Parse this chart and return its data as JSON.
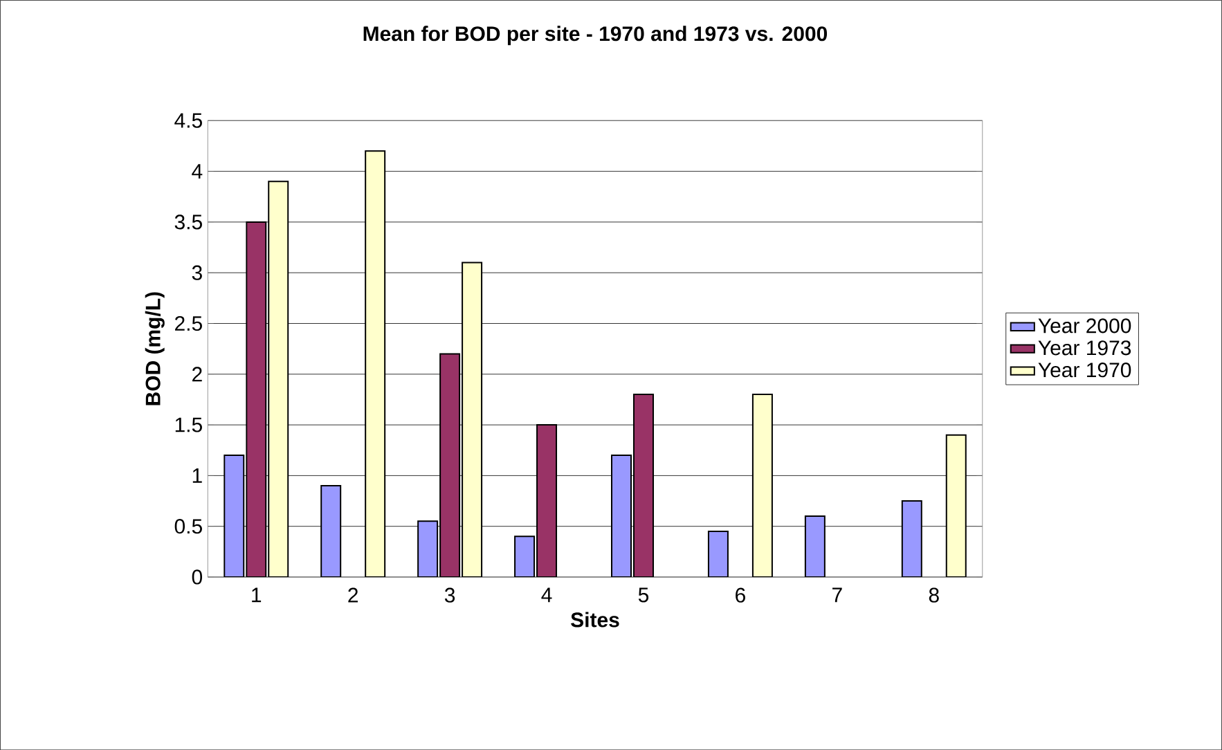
{
  "chart_data": {
    "type": "bar",
    "title": "Mean for BOD per site - 1970 and 1973 vs. 2000",
    "xlabel": "Sites",
    "ylabel": "BOD (mg/L)",
    "categories": [
      "1",
      "2",
      "3",
      "4",
      "5",
      "6",
      "7",
      "8"
    ],
    "series": [
      {
        "name": "Year 2000",
        "color": "#9999ff",
        "values": [
          1.2,
          0.9,
          0.55,
          0.4,
          1.2,
          0.45,
          0.6,
          0.75
        ]
      },
      {
        "name": "Year 1973",
        "color": "#993366",
        "values": [
          3.5,
          null,
          2.2,
          1.5,
          1.8,
          null,
          null,
          null
        ]
      },
      {
        "name": "Year 1970",
        "color": "#ffffcc",
        "values": [
          3.9,
          4.2,
          3.1,
          null,
          null,
          1.8,
          null,
          1.4
        ]
      }
    ],
    "ylim": [
      0,
      4.5
    ],
    "yticks": [
      0,
      0.5,
      1,
      1.5,
      2,
      2.5,
      3,
      3.5,
      4,
      4.5
    ],
    "grid": "y",
    "legend": "right"
  }
}
